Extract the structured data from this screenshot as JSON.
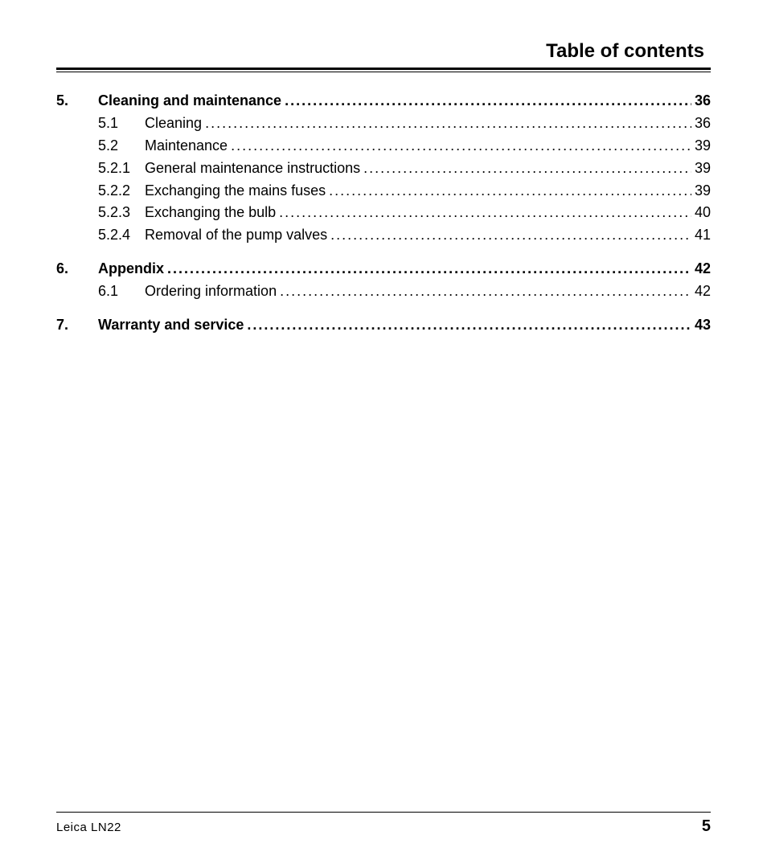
{
  "header": {
    "title": "Table of contents"
  },
  "colors": {
    "text": "#000000",
    "background": "#ffffff",
    "rule": "#000000"
  },
  "typography": {
    "header_fontsize": 24,
    "body_fontsize": 18,
    "footer_left_fontsize": 15,
    "footer_right_fontsize": 20,
    "font_family": "Arial Narrow"
  },
  "toc": {
    "leader_char": ".",
    "sections": [
      {
        "number": "5.",
        "title": "Cleaning and maintenance",
        "page": "36",
        "subs": [
          {
            "number": "5.1",
            "title": "Cleaning",
            "page": "36"
          },
          {
            "number": "5.2",
            "title": "Maintenance",
            "page": "39"
          },
          {
            "number": "5.2.1",
            "title": "General maintenance instructions",
            "page": "39"
          },
          {
            "number": "5.2.2",
            "title": "Exchanging the mains fuses",
            "page": "39"
          },
          {
            "number": "5.2.3",
            "title": "Exchanging the bulb",
            "page": "40"
          },
          {
            "number": "5.2.4",
            "title": "Removal of the pump valves",
            "page": "41"
          }
        ]
      },
      {
        "number": "6.",
        "title": "Appendix",
        "page": "42",
        "subs": [
          {
            "number": "6.1",
            "title": "Ordering information",
            "page": "42"
          }
        ]
      },
      {
        "number": "7.",
        "title": "Warranty and service",
        "page": "43",
        "subs": []
      }
    ]
  },
  "footer": {
    "left": "Leica  LN22",
    "page_number": "5"
  }
}
